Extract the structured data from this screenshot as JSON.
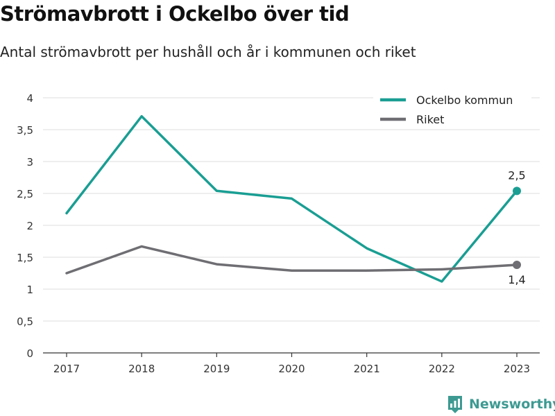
{
  "title": "Strömavbrott i Ockelbo över tid",
  "subtitle": "Antal strömavbrott per hushåll och år i kommunen och riket",
  "brand": {
    "name": "Newsworthy",
    "icon": "newsworthy-logo-icon",
    "color": "#3d9a92"
  },
  "chart_data": {
    "type": "line",
    "title": "Strömavbrott i Ockelbo över tid",
    "subtitle": "Antal strömavbrott per hushåll och år i kommunen och riket",
    "xlabel": "",
    "ylabel": "",
    "x": [
      "2017",
      "2018",
      "2019",
      "2020",
      "2021",
      "2022",
      "2023"
    ],
    "ylim": [
      0,
      4
    ],
    "yticks": [
      0,
      0.5,
      1,
      1.5,
      2,
      2.5,
      3,
      3.5,
      4
    ],
    "ytick_labels": [
      "0",
      "0,5",
      "1",
      "1,5",
      "2",
      "2,5",
      "3",
      "3,5",
      "4"
    ],
    "grid": true,
    "legend": "top-right",
    "series": [
      {
        "name": "Ockelbo kommun",
        "color": "#1a9e93",
        "values": [
          2.19,
          3.71,
          2.54,
          2.42,
          1.64,
          1.12,
          2.54
        ],
        "end_label": "2,5"
      },
      {
        "name": "Riket",
        "color": "#6e6e73",
        "values": [
          1.25,
          1.67,
          1.39,
          1.29,
          1.29,
          1.31,
          1.38
        ],
        "end_label": "1,4"
      }
    ]
  }
}
